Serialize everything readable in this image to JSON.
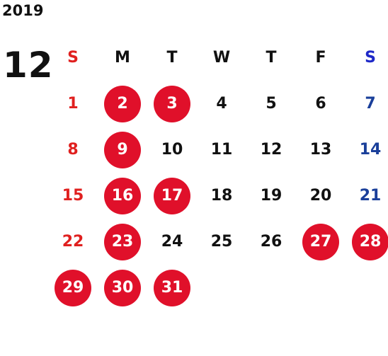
{
  "year": "2019",
  "month": "12",
  "weekdays": [
    "S",
    "M",
    "T",
    "W",
    "T",
    "F",
    "S"
  ],
  "first_weekday_index": 0,
  "days": [
    {
      "d": "1",
      "holiday": false
    },
    {
      "d": "2",
      "holiday": true
    },
    {
      "d": "3",
      "holiday": true
    },
    {
      "d": "4",
      "holiday": false
    },
    {
      "d": "5",
      "holiday": false
    },
    {
      "d": "6",
      "holiday": false
    },
    {
      "d": "7",
      "holiday": false
    },
    {
      "d": "8",
      "holiday": false
    },
    {
      "d": "9",
      "holiday": true
    },
    {
      "d": "10",
      "holiday": false
    },
    {
      "d": "11",
      "holiday": false
    },
    {
      "d": "12",
      "holiday": false
    },
    {
      "d": "13",
      "holiday": false
    },
    {
      "d": "14",
      "holiday": false
    },
    {
      "d": "15",
      "holiday": false
    },
    {
      "d": "16",
      "holiday": true
    },
    {
      "d": "17",
      "holiday": true
    },
    {
      "d": "18",
      "holiday": false
    },
    {
      "d": "19",
      "holiday": false
    },
    {
      "d": "20",
      "holiday": false
    },
    {
      "d": "21",
      "holiday": false
    },
    {
      "d": "22",
      "holiday": false
    },
    {
      "d": "23",
      "holiday": true
    },
    {
      "d": "24",
      "holiday": false
    },
    {
      "d": "25",
      "holiday": false
    },
    {
      "d": "26",
      "holiday": false
    },
    {
      "d": "27",
      "holiday": true
    },
    {
      "d": "28",
      "holiday": true
    },
    {
      "d": "29",
      "holiday": true
    },
    {
      "d": "30",
      "holiday": true
    },
    {
      "d": "31",
      "holiday": true
    }
  ],
  "colors": {
    "sunday": "#e0201f",
    "saturday": "#1a3f9a",
    "holiday_circle": "#e0102a"
  }
}
